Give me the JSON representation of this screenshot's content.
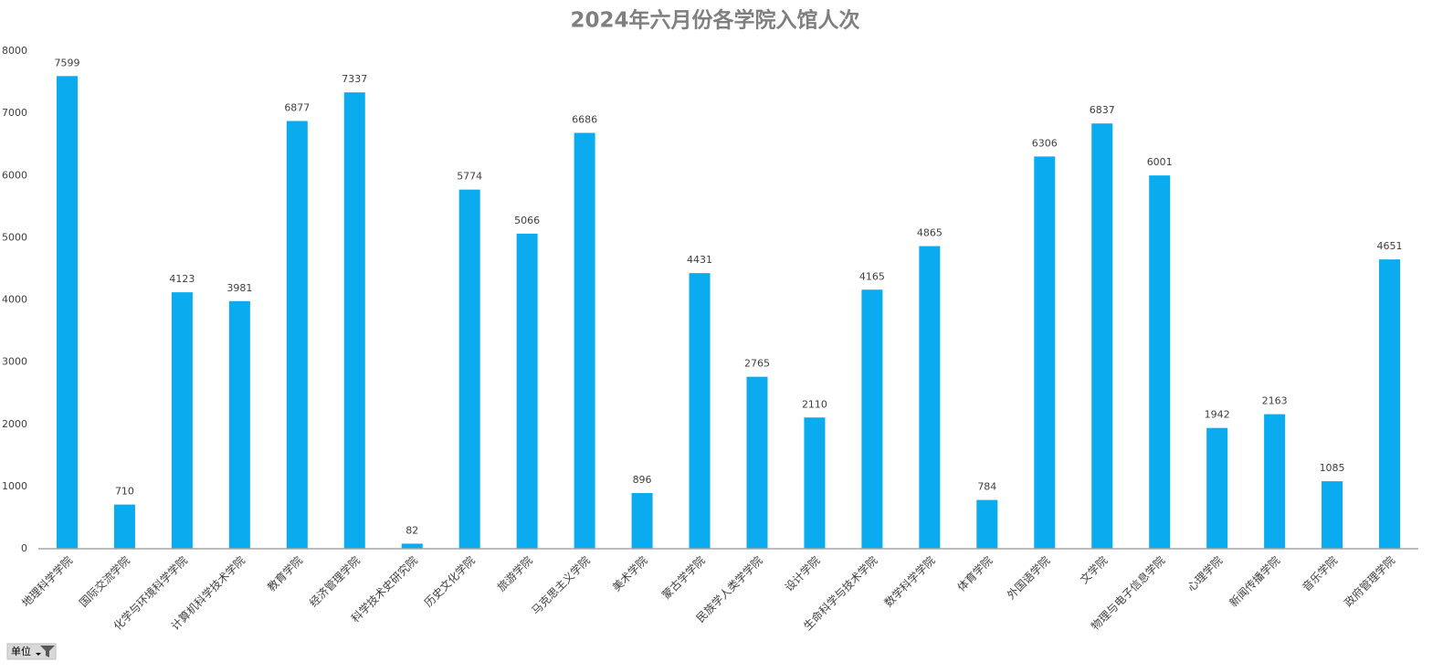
{
  "chart_data": {
    "type": "bar",
    "title": "2024年六月份各学院入馆人次",
    "categories": [
      "地理科学学院",
      "国际交流学院",
      "化学与环境科学学院",
      "计算机科学技术学院",
      "教育学院",
      "经济管理学院",
      "科学技术史研究院",
      "历史文化学院",
      "旅游学院",
      "马克思主义学院",
      "美术学院",
      "蒙古学学院",
      "民族学人类学学院",
      "设计学院",
      "生命科学与技术学院",
      "数学科学学院",
      "体育学院",
      "外国语学院",
      "文学院",
      "物理与电子信息学院",
      "心理学院",
      "新闻传播学院",
      "音乐学院",
      "政府管理学院"
    ],
    "values": [
      7599,
      710,
      4123,
      3981,
      6877,
      7337,
      82,
      5774,
      5066,
      6686,
      896,
      4431,
      2765,
      2110,
      4165,
      4865,
      784,
      6306,
      6837,
      6001,
      1942,
      2163,
      1085,
      4651
    ],
    "color": "#0aabef",
    "ylim": [
      0,
      8000
    ],
    "yticks": [
      0,
      1000,
      2000,
      3000,
      4000,
      5000,
      6000,
      7000,
      8000
    ],
    "grid": false,
    "field_button": "单位"
  }
}
